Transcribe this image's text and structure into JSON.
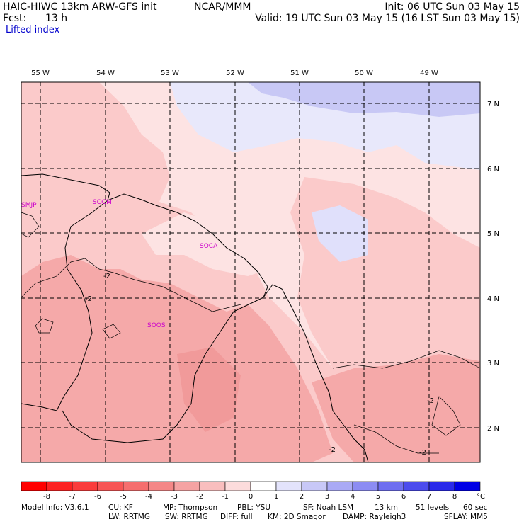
{
  "header": {
    "model": "HAIC-HIWC 13km ARW-GFS init",
    "org": "NCAR/MMM",
    "init": "Init: 06 UTC Sun 03 May 15",
    "fcst_label": "Fcst:",
    "fcst_value": "13 h",
    "valid": "Valid: 19 UTC Sun 03 May 15 (16 LST Sun 03 May 15)",
    "field": "Lifted index"
  },
  "map": {
    "lon_labels": [
      "55 W",
      "54 W",
      "53 W",
      "52 W",
      "51 W",
      "50 W",
      "49 W"
    ],
    "lat_labels": [
      "7 N",
      "6 N",
      "5 N",
      "4 N",
      "3 N",
      "2 N"
    ],
    "stations": [
      "SMJP",
      "SOCM",
      "SOCA",
      "SOOS"
    ],
    "contour_labels": [
      "-2",
      "-2",
      "-2",
      "-2",
      "-2"
    ],
    "colors": {
      "light_pink": "#fde3e3",
      "pink": "#fbcaca",
      "salmon": "#f5a9a9",
      "lavender": "#dcdcfa",
      "periwinkle": "#c8c8f5",
      "station": "#cc00cc"
    }
  },
  "colorbar": {
    "ticks": [
      "-8",
      "-7",
      "-6",
      "-5",
      "-4",
      "-3",
      "-2",
      "-1",
      "0",
      "1",
      "2",
      "3",
      "4",
      "5",
      "6",
      "7",
      "8"
    ],
    "unit": "°C",
    "colors": [
      "#ff0000",
      "#fc2222",
      "#fa3c3c",
      "#f75555",
      "#f56e6e",
      "#f48787",
      "#f5a3a3",
      "#f9bebe",
      "#fcdcdc",
      "#ffffff",
      "#e3e3fb",
      "#c8c8f7",
      "#aaaaf5",
      "#8c8cf3",
      "#6e6ef0",
      "#4b4bed",
      "#2a2aea",
      "#0000e6"
    ]
  },
  "footer": {
    "model_info": "Model Info: V3.6.1",
    "cu": "CU: KF",
    "mp": "MP: Thompson",
    "pbl": "PBL: YSU",
    "sf": "SF: Noah LSM",
    "res": "13 km",
    "levels": "51 levels",
    "dt": "60 sec",
    "lw": "LW: RRTMG",
    "sw": "SW: RRTMG",
    "diff": "DIFF: full",
    "km": "KM: 2D Smagor",
    "damp": "DAMP: Rayleigh3",
    "sflay": "SFLAY: MM5"
  }
}
